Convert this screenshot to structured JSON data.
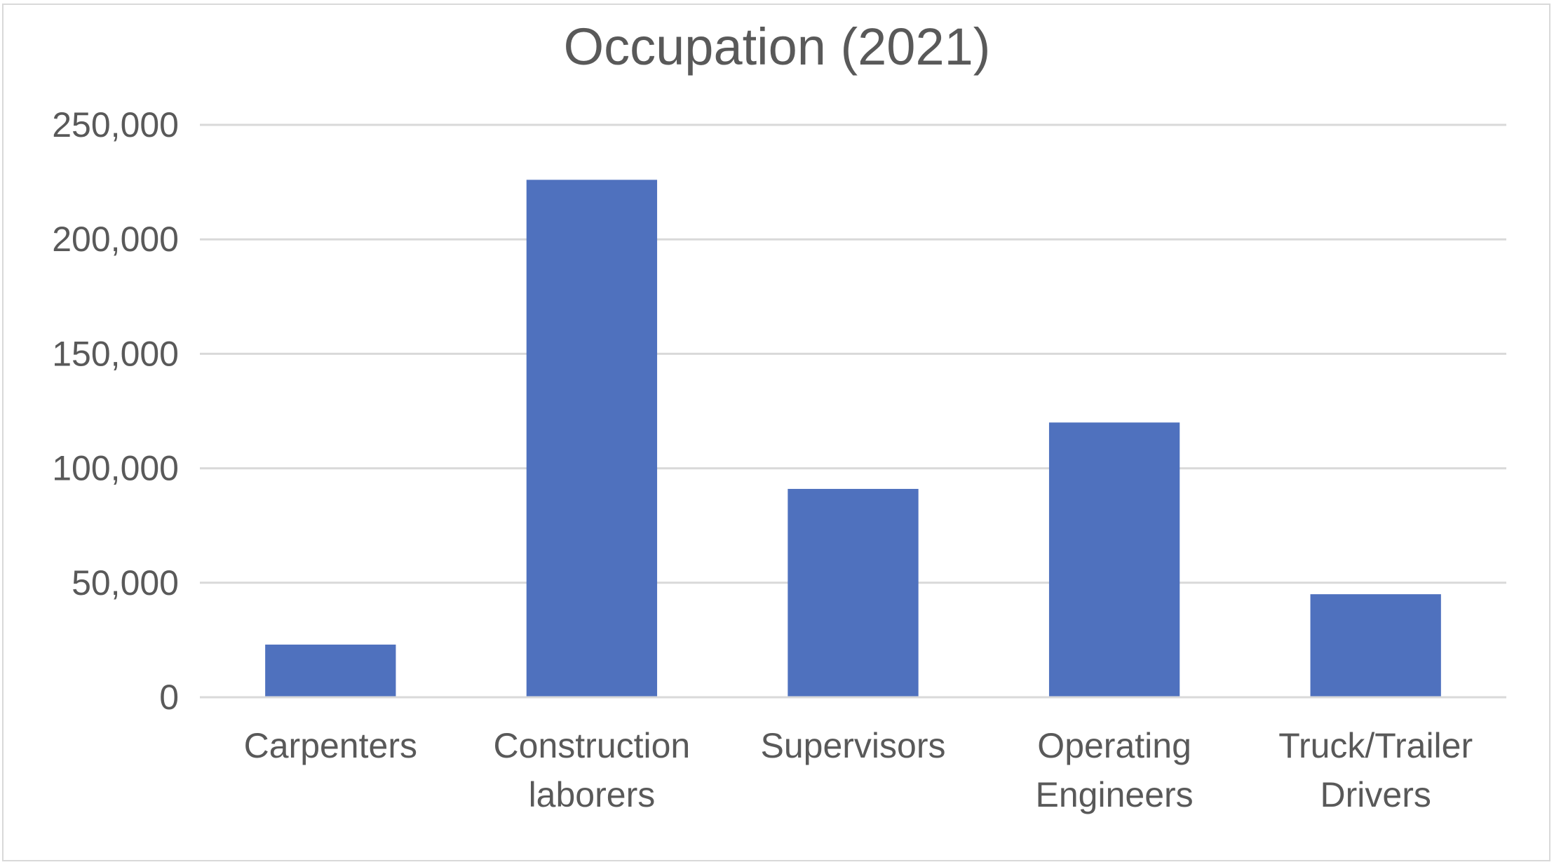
{
  "chart_data": {
    "type": "bar",
    "title": "Occupation (2021)",
    "xlabel": "",
    "ylabel": "",
    "categories": [
      [
        "Carpenters"
      ],
      [
        "Construction",
        "laborers"
      ],
      [
        "Supervisors"
      ],
      [
        "Operating",
        "Engineers"
      ],
      [
        "Truck/Trailer",
        "Drivers"
      ]
    ],
    "values": [
      23000,
      226000,
      91000,
      120000,
      45000
    ],
    "ylim": [
      0,
      250000
    ],
    "yticks": [
      0,
      50000,
      100000,
      150000,
      200000,
      250000
    ],
    "ytick_labels": [
      "0",
      "50,000",
      "100,000",
      "150,000",
      "200,000",
      "250,000"
    ],
    "grid": true,
    "legend": "none",
    "bar_color": "#4f71be"
  }
}
